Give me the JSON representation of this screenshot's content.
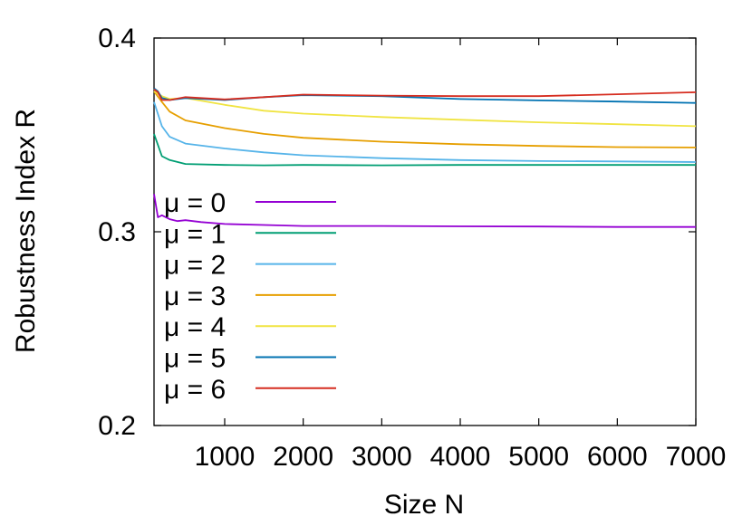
{
  "chart_data": {
    "type": "line",
    "title": "",
    "xlabel": "Size N",
    "ylabel": "Robustness Index R",
    "xlim": [
      100,
      7000
    ],
    "ylim": [
      0.2,
      0.4
    ],
    "xticks": [
      1000,
      2000,
      3000,
      4000,
      5000,
      6000,
      7000
    ],
    "xtick_labels": [
      "1000",
      "2000",
      "3000",
      "4000",
      "5000",
      "6000",
      "7000"
    ],
    "yticks": [
      0.2,
      0.3,
      0.4
    ],
    "ytick_labels": [
      "0.2",
      "0.3",
      "0.4"
    ],
    "grid": false,
    "legend_position": "left-center",
    "series": [
      {
        "name": "μ = 0",
        "color": "#9400d3",
        "x": [
          100,
          150,
          200,
          300,
          400,
          500,
          700,
          1000,
          1500,
          2000,
          3000,
          4000,
          5000,
          6000,
          7000
        ],
        "y": [
          0.3195,
          0.3075,
          0.3085,
          0.3065,
          0.3055,
          0.306,
          0.305,
          0.304,
          0.3035,
          0.303,
          0.303,
          0.3028,
          0.3027,
          0.3025,
          0.3025
        ]
      },
      {
        "name": "μ = 1",
        "color": "#009e73",
        "x": [
          100,
          200,
          300,
          500,
          1000,
          1500,
          2000,
          3000,
          4000,
          5000,
          6000,
          7000
        ],
        "y": [
          0.3505,
          0.339,
          0.337,
          0.335,
          0.3345,
          0.3343,
          0.3345,
          0.3343,
          0.3345,
          0.3345,
          0.3345,
          0.3345
        ]
      },
      {
        "name": "μ = 2",
        "color": "#56b4e9",
        "x": [
          100,
          200,
          300,
          500,
          1000,
          1500,
          2000,
          3000,
          4000,
          5000,
          6000,
          7000
        ],
        "y": [
          0.367,
          0.3545,
          0.349,
          0.3455,
          0.343,
          0.341,
          0.3395,
          0.338,
          0.337,
          0.3365,
          0.3363,
          0.336
        ]
      },
      {
        "name": "μ = 3",
        "color": "#e69f00",
        "x": [
          100,
          200,
          300,
          500,
          1000,
          1500,
          2000,
          3000,
          4000,
          5000,
          6000,
          7000
        ],
        "y": [
          0.3725,
          0.367,
          0.362,
          0.3575,
          0.3535,
          0.3505,
          0.3485,
          0.3465,
          0.3452,
          0.3443,
          0.3437,
          0.3435
        ]
      },
      {
        "name": "μ = 4",
        "color": "#f0e442",
        "x": [
          100,
          200,
          300,
          500,
          1000,
          1500,
          2000,
          3000,
          4000,
          5000,
          6000,
          7000
        ],
        "y": [
          0.3725,
          0.37,
          0.3685,
          0.369,
          0.3655,
          0.3625,
          0.361,
          0.3592,
          0.3578,
          0.3565,
          0.3555,
          0.3545
        ]
      },
      {
        "name": "μ = 5",
        "color": "#0072b2",
        "x": [
          100,
          150,
          200,
          300,
          500,
          1000,
          1500,
          2000,
          3000,
          4000,
          5000,
          6000,
          7000
        ],
        "y": [
          0.374,
          0.3725,
          0.369,
          0.368,
          0.369,
          0.368,
          0.3695,
          0.3705,
          0.37,
          0.3685,
          0.3678,
          0.3672,
          0.3665
        ]
      },
      {
        "name": "μ = 6",
        "color": "#d62d20",
        "x": [
          100,
          150,
          200,
          300,
          500,
          1000,
          1500,
          2000,
          3000,
          4000,
          5000,
          6000,
          7000
        ],
        "y": [
          0.3735,
          0.372,
          0.368,
          0.368,
          0.3695,
          0.3683,
          0.3695,
          0.3708,
          0.3703,
          0.37,
          0.37,
          0.371,
          0.372
        ]
      }
    ]
  }
}
